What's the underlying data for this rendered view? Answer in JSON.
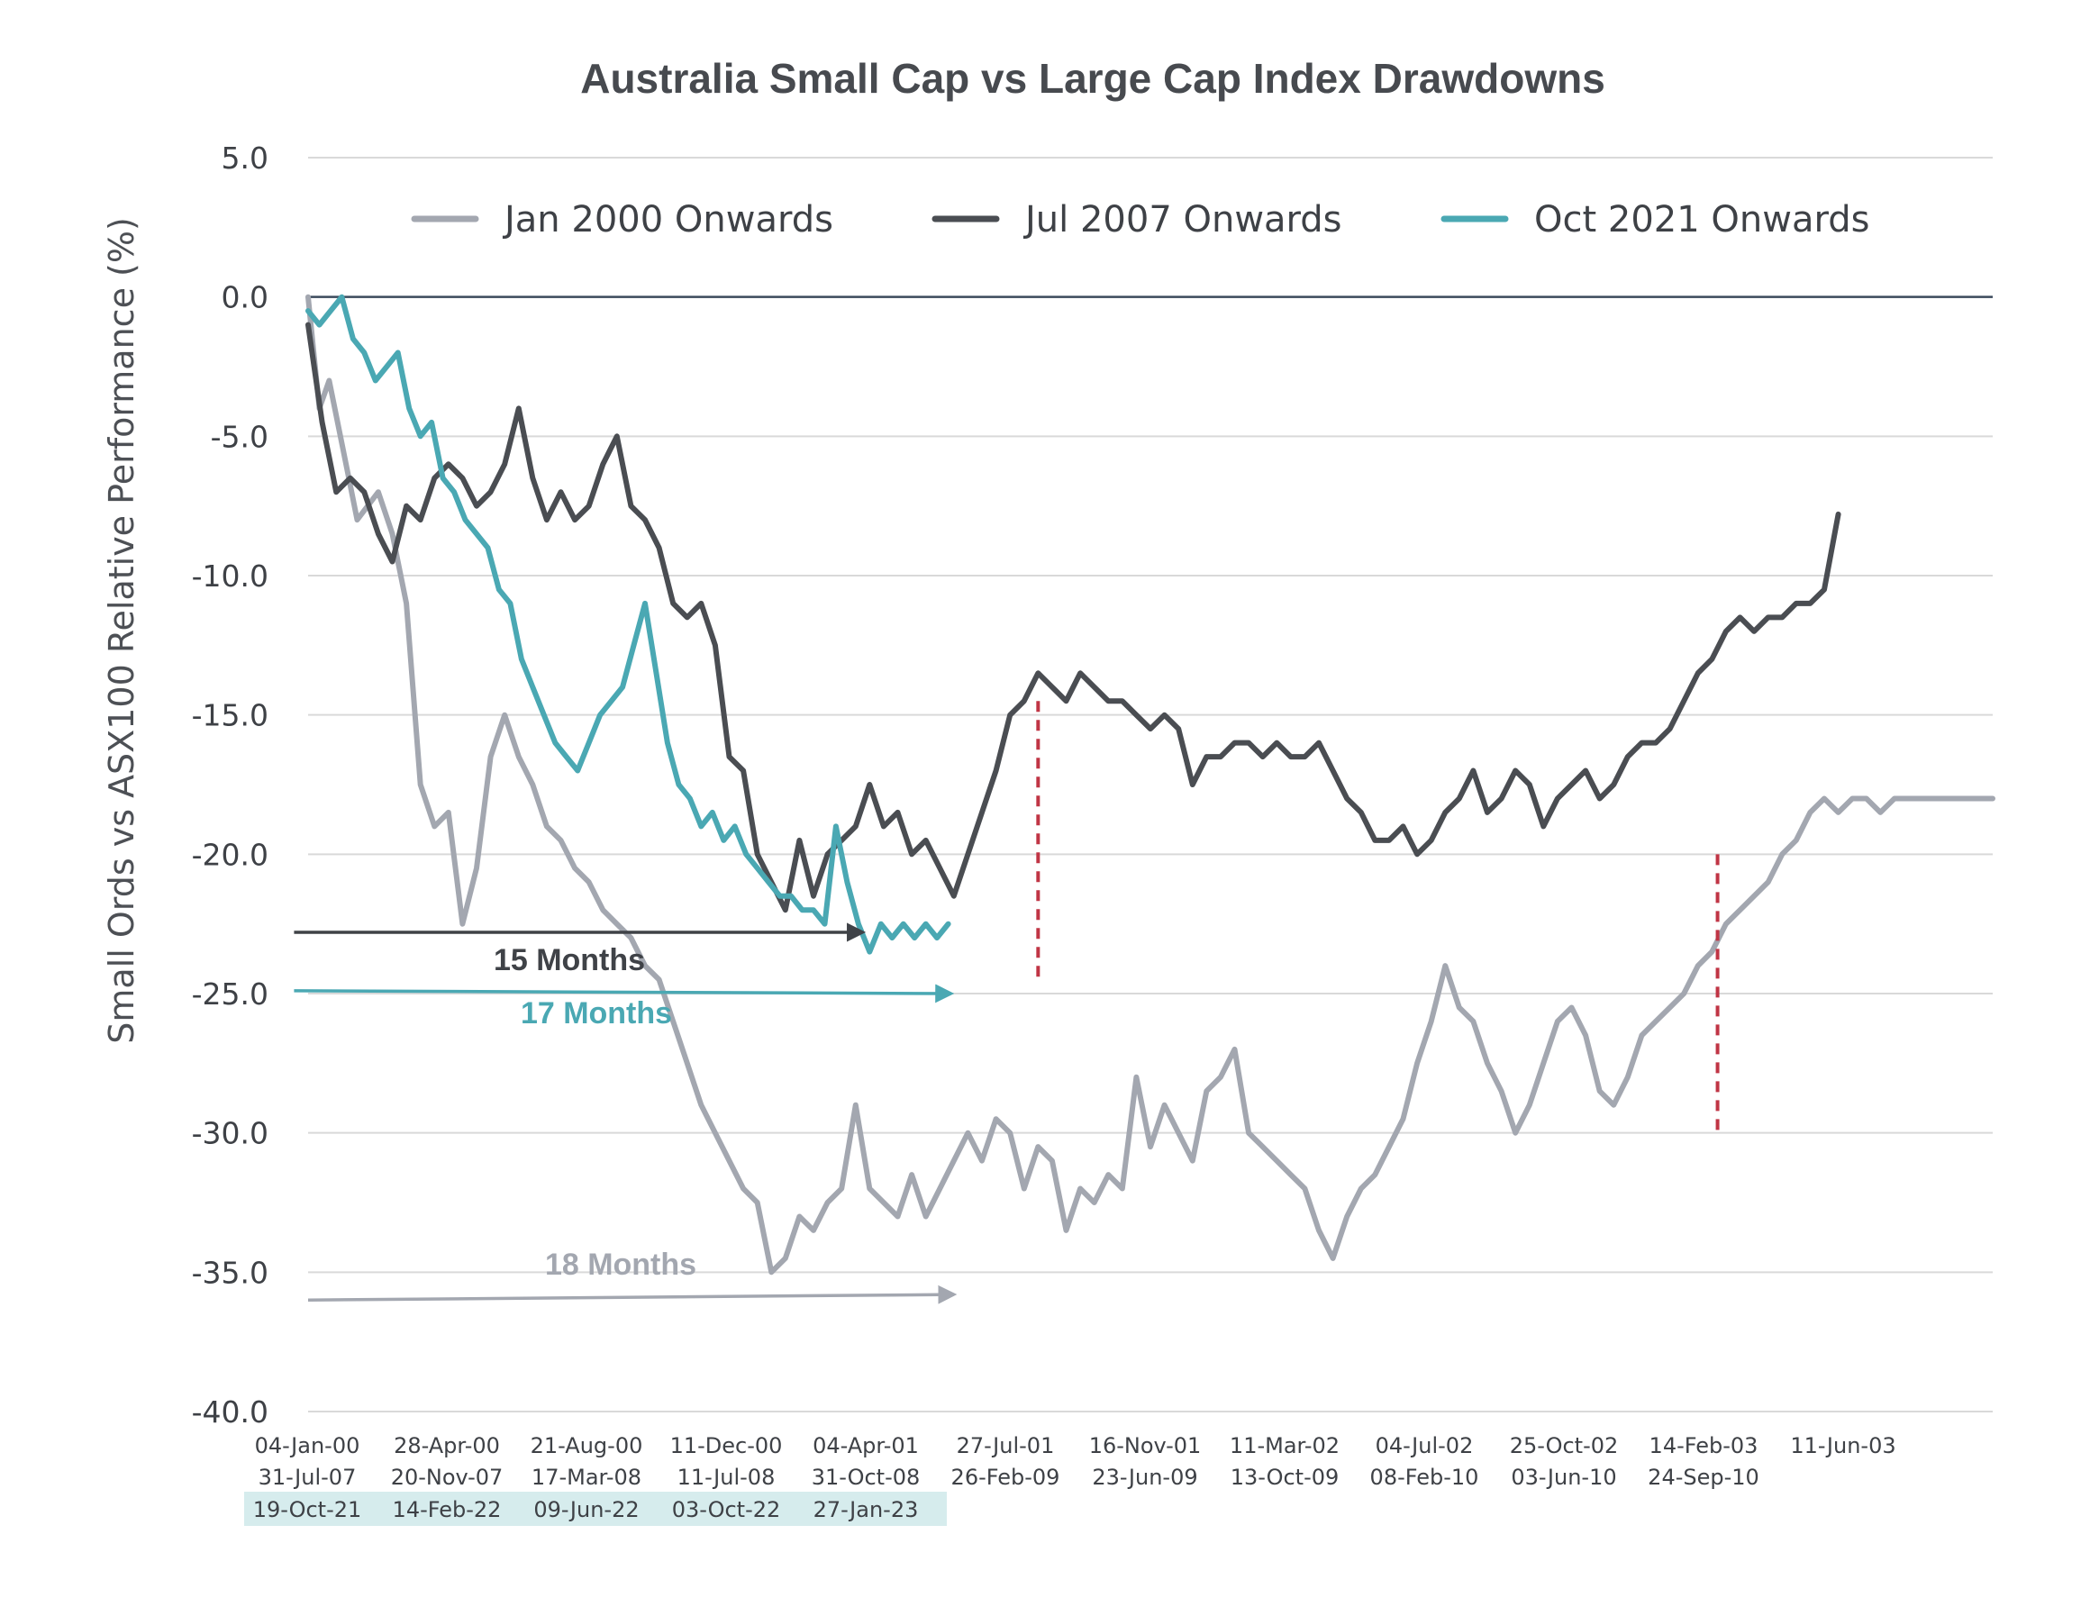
{
  "chart_data": {
    "type": "line",
    "title": "Australia Small Cap vs Large Cap Index Drawdowns",
    "xlabel": "",
    "ylabel": "Small Ords vs ASX100 Relative Performance (%)",
    "ylim": [
      -40,
      5
    ],
    "yticks": [
      "5.0",
      "0.0",
      "-5.0",
      "-10.0",
      "-15.0",
      "-20.0",
      "-25.0",
      "-30.0",
      "-35.0",
      "-40.0"
    ],
    "grid": true,
    "legend_position": "top",
    "x_index_range": [
      0,
      1200
    ],
    "x_tick_rows": [
      {
        "labels": [
          "04-Jan-00",
          "28-Apr-00",
          "21-Aug-00",
          "11-Dec-00",
          "04-Apr-01",
          "27-Jul-01",
          "16-Nov-01",
          "11-Mar-02",
          "04-Jul-02",
          "25-Oct-02",
          "14-Feb-03",
          "11-Jun-03"
        ],
        "highlight": false
      },
      {
        "labels": [
          "31-Jul-07",
          "20-Nov-07",
          "17-Mar-08",
          "11-Jul-08",
          "31-Oct-08",
          "26-Feb-09",
          "23-Jun-09",
          "13-Oct-09",
          "08-Feb-10",
          "03-Jun-10",
          "24-Sep-10"
        ],
        "highlight": false
      },
      {
        "labels": [
          "19-Oct-21",
          "14-Feb-22",
          "09-Jun-22",
          "03-Oct-22",
          "27-Jan-23"
        ],
        "highlight": true,
        "highlight_color": "#d6eced"
      }
    ],
    "series": [
      {
        "name": "Jan 2000 Onwards",
        "color": "#a3a7b0",
        "x": [
          0,
          8,
          15,
          25,
          35,
          50,
          60,
          70,
          80,
          90,
          100,
          110,
          120,
          130,
          140,
          150,
          160,
          170,
          180,
          190,
          200,
          210,
          220,
          230,
          240,
          250,
          260,
          270,
          280,
          290,
          300,
          310,
          320,
          330,
          340,
          350,
          360,
          370,
          380,
          390,
          400,
          410,
          420,
          430,
          440,
          450,
          460,
          470,
          480,
          490,
          500,
          510,
          520,
          530,
          540,
          550,
          560,
          570,
          580,
          590,
          600,
          610,
          620,
          630,
          640,
          650,
          660,
          670,
          680,
          690,
          700,
          710,
          720,
          730,
          740,
          750,
          760,
          770,
          780,
          790,
          800,
          810,
          820,
          830,
          840,
          850,
          860,
          870,
          880,
          890,
          900,
          910,
          920,
          930,
          940,
          950,
          960,
          970,
          980,
          990,
          1000,
          1010,
          1020,
          1030,
          1040,
          1050,
          1060,
          1070,
          1080,
          1090,
          1100,
          1110,
          1120,
          1130,
          1140,
          1150,
          1160,
          1170,
          1180,
          1190,
          1200
        ],
        "y": [
          0.0,
          -4.0,
          -3.0,
          -5.5,
          -8.0,
          -7.0,
          -8.5,
          -11.0,
          -17.5,
          -19.0,
          -18.5,
          -22.5,
          -20.5,
          -16.5,
          -15.0,
          -16.5,
          -17.5,
          -19.0,
          -19.5,
          -20.5,
          -21.0,
          -22.0,
          -22.5,
          -23.0,
          -24.0,
          -24.5,
          -26.0,
          -27.5,
          -29.0,
          -30.0,
          -31.0,
          -32.0,
          -32.5,
          -35.0,
          -34.5,
          -33.0,
          -33.5,
          -32.5,
          -32.0,
          -29.0,
          -32.0,
          -32.5,
          -33.0,
          -31.5,
          -33.0,
          -32.0,
          -31.0,
          -30.0,
          -31.0,
          -29.5,
          -30.0,
          -32.0,
          -30.5,
          -31.0,
          -33.5,
          -32.0,
          -32.5,
          -31.5,
          -32.0,
          -28.0,
          -30.5,
          -29.0,
          -30.0,
          -31.0,
          -28.5,
          -28.0,
          -27.0,
          -30.0,
          -30.5,
          -31.0,
          -31.5,
          -32.0,
          -33.5,
          -34.5,
          -33.0,
          -32.0,
          -31.5,
          -30.5,
          -29.5,
          -27.5,
          -26.0,
          -24.0,
          -25.5,
          -26.0,
          -27.5,
          -28.5,
          -30.0,
          -29.0,
          -27.5,
          -26.0,
          -25.5,
          -26.5,
          -28.5,
          -29.0,
          -28.0,
          -26.5,
          -26.0,
          -25.5,
          -25.0,
          -24.0,
          -23.5,
          -22.5,
          -22.0,
          -21.5,
          -21.0,
          -20.0,
          -19.5,
          -18.5,
          -18.0,
          -18.5,
          -18.0,
          -18.0,
          -18.5,
          -18.0,
          -18.0,
          -18.0,
          -18.0,
          -18.0,
          -18.0,
          -18.0,
          -18.0
        ]
      },
      {
        "name": "Jul 2007 Onwards",
        "color": "#4a4d52",
        "x": [
          0,
          10,
          20,
          30,
          40,
          50,
          60,
          70,
          80,
          90,
          100,
          110,
          120,
          130,
          140,
          150,
          160,
          170,
          180,
          190,
          200,
          210,
          220,
          230,
          240,
          250,
          260,
          270,
          280,
          290,
          300,
          310,
          320,
          330,
          340,
          350,
          360,
          370,
          380,
          390,
          400,
          410,
          420,
          430,
          440,
          450,
          460,
          470,
          480,
          490,
          500,
          510,
          520,
          530,
          540,
          550,
          560,
          570,
          580,
          590,
          600,
          610,
          620,
          630,
          640,
          650,
          660,
          670,
          680,
          690,
          700,
          710,
          720,
          730,
          740,
          750,
          760,
          770,
          780,
          790,
          800,
          810,
          820,
          830,
          840,
          850,
          860,
          870,
          880,
          890,
          900,
          910,
          920,
          930,
          940,
          950,
          960,
          970,
          980,
          990,
          1000,
          1010,
          1020,
          1030,
          1040,
          1050,
          1060,
          1070,
          1080,
          1090
        ],
        "y": [
          -1.0,
          -4.5,
          -7.0,
          -6.5,
          -7.0,
          -8.5,
          -9.5,
          -7.5,
          -8.0,
          -6.5,
          -6.0,
          -6.5,
          -7.5,
          -7.0,
          -6.0,
          -4.0,
          -6.5,
          -8.0,
          -7.0,
          -8.0,
          -7.5,
          -6.0,
          -5.0,
          -7.5,
          -8.0,
          -9.0,
          -11.0,
          -11.5,
          -11.0,
          -12.5,
          -16.5,
          -17.0,
          -20.0,
          -21.0,
          -22.0,
          -19.5,
          -21.5,
          -20.0,
          -19.5,
          -19.0,
          -17.5,
          -19.0,
          -18.5,
          -20.0,
          -19.5,
          -20.5,
          -21.5,
          -20.0,
          -18.5,
          -17.0,
          -15.0,
          -14.5,
          -13.5,
          -14.0,
          -14.5,
          -13.5,
          -14.0,
          -14.5,
          -14.5,
          -15.0,
          -15.5,
          -15.0,
          -15.5,
          -17.5,
          -16.5,
          -16.5,
          -16.0,
          -16.0,
          -16.5,
          -16.0,
          -16.5,
          -16.5,
          -16.0,
          -17.0,
          -18.0,
          -18.5,
          -19.5,
          -19.5,
          -19.0,
          -20.0,
          -19.5,
          -18.5,
          -18.0,
          -17.0,
          -18.5,
          -18.0,
          -17.0,
          -17.5,
          -19.0,
          -18.0,
          -17.5,
          -17.0,
          -18.0,
          -17.5,
          -16.5,
          -16.0,
          -16.0,
          -15.5,
          -14.5,
          -13.5,
          -13.0,
          -12.0,
          -11.5,
          -12.0,
          -11.5,
          -11.5,
          -11.0,
          -11.0,
          -10.5,
          -7.8
        ]
      },
      {
        "name": "Oct 2021 Onwards",
        "color": "#4aa8b3",
        "x": [
          0,
          8,
          16,
          24,
          32,
          40,
          48,
          56,
          64,
          72,
          80,
          88,
          96,
          104,
          112,
          120,
          128,
          136,
          144,
          152,
          160,
          168,
          176,
          184,
          192,
          200,
          208,
          216,
          224,
          232,
          240,
          248,
          256,
          264,
          272,
          280,
          288,
          296,
          304,
          312,
          320,
          328,
          336,
          344,
          352,
          360,
          368,
          376,
          384,
          392,
          400,
          408,
          416,
          424,
          432,
          440,
          448,
          456
        ],
        "y": [
          -0.5,
          -1.0,
          -0.5,
          0.0,
          -1.5,
          -2.0,
          -3.0,
          -2.5,
          -2.0,
          -4.0,
          -5.0,
          -4.5,
          -6.5,
          -7.0,
          -8.0,
          -8.5,
          -9.0,
          -10.5,
          -11.0,
          -13.0,
          -14.0,
          -15.0,
          -16.0,
          -16.5,
          -17.0,
          -16.0,
          -15.0,
          -14.5,
          -14.0,
          -12.5,
          -11.0,
          -13.5,
          -16.0,
          -17.5,
          -18.0,
          -19.0,
          -18.5,
          -19.5,
          -19.0,
          -20.0,
          -20.5,
          -21.0,
          -21.5,
          -21.5,
          -22.0,
          -22.0,
          -22.5,
          -19.0,
          -21.0,
          -22.5,
          -23.5,
          -22.5,
          -23.0,
          -22.5,
          -23.0,
          -22.5,
          -23.0,
          -22.5
        ]
      }
    ],
    "annotations": [
      {
        "text": "15 Months",
        "color": "#3f4247",
        "arrow_from": [
          -10,
          -22.8
        ],
        "arrow_to": [
          395,
          -22.8
        ]
      },
      {
        "text": "17 Months",
        "color": "#4aa8b3",
        "arrow_from": [
          -10,
          -24.9
        ],
        "arrow_to": [
          458,
          -25.0
        ]
      },
      {
        "text": "18 Months",
        "color": "#a3a7b0",
        "arrow_from": [
          0,
          -36.0
        ],
        "arrow_to": [
          460,
          -35.8
        ]
      }
    ],
    "reference_lines": [
      {
        "x": 520,
        "y_from": -14.5,
        "y_to": -24.5,
        "color": "#c03545"
      },
      {
        "x": 1004,
        "y_from": -20.0,
        "y_to": -30.0,
        "color": "#c03545"
      }
    ]
  }
}
